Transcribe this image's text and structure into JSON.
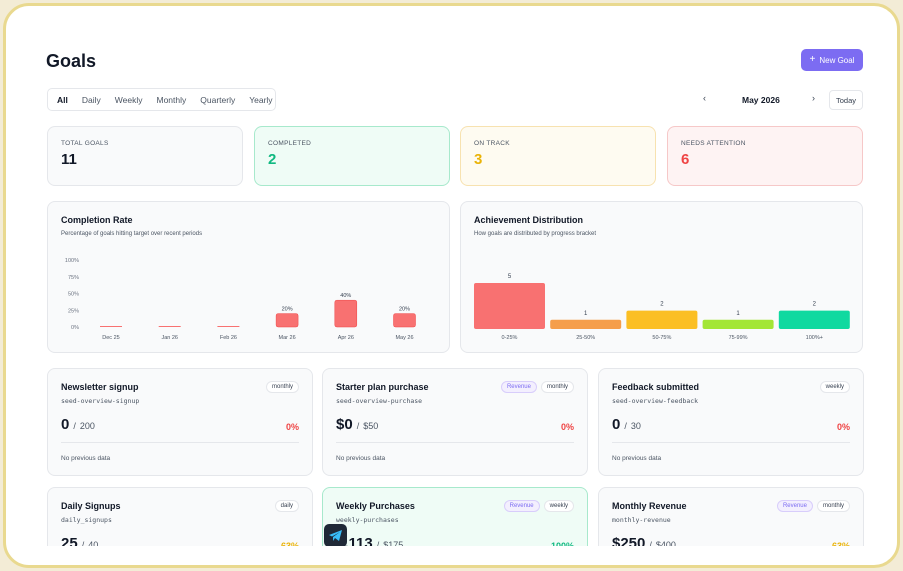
{
  "header": {
    "title": "Goals",
    "new_goal_label": "New Goal"
  },
  "tabs": [
    "All",
    "Daily",
    "Weekly",
    "Monthly",
    "Quarterly",
    "Yearly"
  ],
  "period": {
    "label": "May 2026",
    "today_label": "Today"
  },
  "stats": [
    {
      "label": "TOTAL GOALS",
      "value": "11",
      "color": "#111827"
    },
    {
      "label": "COMPLETED",
      "value": "2",
      "color": "#10b981"
    },
    {
      "label": "ON TRACK",
      "value": "3",
      "color": "#eab308"
    },
    {
      "label": "NEEDS ATTENTION",
      "value": "6",
      "color": "#ef4444"
    }
  ],
  "completion": {
    "title": "Completion Rate",
    "subtitle": "Percentage of goals hitting target over recent periods"
  },
  "distribution": {
    "title": "Achievement Distribution",
    "subtitle": "How goals are distributed by progress bracket"
  },
  "chart_data": [
    {
      "type": "bar",
      "categories": [
        "Dec 25",
        "Jan 26",
        "Feb 26",
        "Mar 26",
        "Apr 26",
        "May 26"
      ],
      "values": [
        0,
        0,
        0,
        20,
        40,
        20
      ],
      "value_labels": [
        "",
        "",
        "",
        "20%",
        "40%",
        "20%"
      ],
      "yticks": [
        "100%",
        "75%",
        "50%",
        "25%",
        "0%"
      ],
      "ylim": [
        0,
        100
      ],
      "color": "#f87171"
    },
    {
      "type": "bar",
      "categories": [
        "0-25%",
        "25-50%",
        "50-75%",
        "75-99%",
        "100%+"
      ],
      "values": [
        5,
        1,
        2,
        1,
        2
      ],
      "colors": [
        "#f87171",
        "#f59e4b",
        "#fbbf24",
        "#a3e635",
        "#10d9a0"
      ]
    }
  ],
  "goals": [
    {
      "name": "Newsletter signup",
      "slug": "seed-overview-signup",
      "value": "0",
      "target": "200",
      "pct": "0%",
      "pct_color": "#ef4444",
      "badges": [
        "monthly"
      ],
      "revenue": false,
      "prev": "No previous data"
    },
    {
      "name": "Starter plan purchase",
      "slug": "seed-overview-purchase",
      "value": "$0",
      "target": "$50",
      "pct": "0%",
      "pct_color": "#ef4444",
      "badges": [
        "monthly"
      ],
      "revenue": true,
      "revenue_label": "Revenue",
      "prev": "No previous data"
    },
    {
      "name": "Feedback submitted",
      "slug": "seed-overview-feedback",
      "value": "0",
      "target": "30",
      "pct": "0%",
      "pct_color": "#ef4444",
      "badges": [
        "weekly"
      ],
      "revenue": false,
      "prev": "No previous data"
    },
    {
      "name": "Daily Signups",
      "slug": "daily_signups",
      "value": "25",
      "target": "40",
      "pct": "63%",
      "pct_color": "#eab308",
      "badges": [
        "daily"
      ],
      "revenue": false
    },
    {
      "name": "Weekly Purchases",
      "slug": "weekly-purchases",
      "value": "8,113",
      "target": "$175",
      "pct": "100%",
      "pct_color": "#10b981",
      "badges": [
        "weekly"
      ],
      "revenue": true,
      "revenue_label": "Revenue"
    },
    {
      "name": "Monthly Revenue",
      "slug": "monthly-revenue",
      "value": "$250",
      "target": "$400",
      "pct": "63%",
      "pct_color": "#eab308",
      "badges": [
        "monthly"
      ],
      "revenue": true,
      "revenue_label": "Revenue"
    }
  ],
  "icons": {
    "add": "plus-icon",
    "prev": "chevron-left-icon",
    "next": "chevron-right-icon",
    "dock": "telegram-icon"
  }
}
